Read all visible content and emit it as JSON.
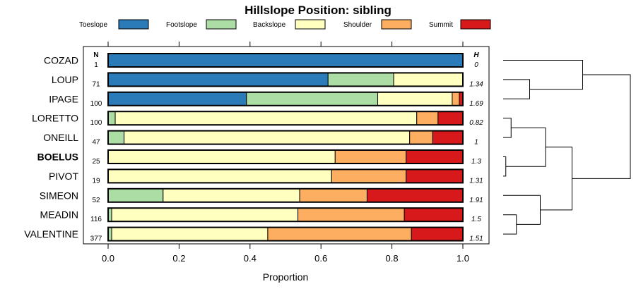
{
  "chart_data": {
    "type": "bar",
    "stacked": true,
    "orientation": "horizontal",
    "title": "Hillslope Position: sibling",
    "xlabel": "Proportion",
    "ylabel": "",
    "xlim": [
      0,
      1
    ],
    "x_ticks": [
      "0.0",
      "0.2",
      "0.4",
      "0.6",
      "0.8",
      "1.0"
    ],
    "legend_position": "top",
    "n_header": "N",
    "h_header": "H",
    "highlight": "BOELUS",
    "categories": [
      "COZAD",
      "LOUP",
      "IPAGE",
      "LORETTO",
      "ONEILL",
      "BOELUS",
      "PIVOT",
      "SIMEON",
      "MEADIN",
      "VALENTINE"
    ],
    "n": [
      "1",
      "71",
      "100",
      "100",
      "47",
      "25",
      "19",
      "52",
      "116",
      "377"
    ],
    "h": [
      "0",
      "1.34",
      "1.69",
      "0.82",
      "1",
      "1.3",
      "1.31",
      "1.91",
      "1.5",
      "1.51"
    ],
    "series": [
      {
        "name": "Toeslope",
        "color": "#2B7BB9",
        "values": [
          1.0,
          0.62,
          0.39,
          0.0,
          0.0,
          0.0,
          0.0,
          0.0,
          0.0,
          0.0
        ]
      },
      {
        "name": "Footslope",
        "color": "#ABDDA4",
        "values": [
          0.0,
          0.185,
          0.37,
          0.02,
          0.045,
          0.0,
          0.0,
          0.155,
          0.01,
          0.01
        ]
      },
      {
        "name": "Backslope",
        "color": "#FFFFBF",
        "values": [
          0.0,
          0.195,
          0.21,
          0.85,
          0.805,
          0.64,
          0.63,
          0.385,
          0.525,
          0.44
        ]
      },
      {
        "name": "Shoulder",
        "color": "#FDAE61",
        "values": [
          0.0,
          0.0,
          0.02,
          0.06,
          0.065,
          0.2,
          0.21,
          0.19,
          0.3,
          0.405
        ]
      },
      {
        "name": "Summit",
        "color": "#D7191C",
        "values": [
          0.0,
          0.0,
          0.01,
          0.07,
          0.085,
          0.16,
          0.16,
          0.27,
          0.165,
          0.145
        ]
      }
    ],
    "dendrogram": {
      "leaves": [
        "COZAD",
        "LOUP",
        "IPAGE",
        "LORETTO",
        "ONEILL",
        "BOELUS",
        "PIVOT",
        "SIMEON",
        "MEADIN",
        "VALENTINE"
      ],
      "merges": [
        {
          "a": "LOUP",
          "b": "IPAGE",
          "height": 0.1
        },
        {
          "a": "LORETTO",
          "b": "ONEILL",
          "height": 0.03
        },
        {
          "a": "BOELUS",
          "b": "PIVOT",
          "height": 0.01
        },
        {
          "a": "MEADIN",
          "b": "VALENTINE",
          "height": 0.05
        },
        {
          "a": "COZAD",
          "b": "LOUP+IPAGE",
          "height": 0.3
        },
        {
          "a": "LORETTO+ONEILL",
          "b": "BOELUS+PIVOT",
          "height": 0.16
        },
        {
          "a": "SIMEON",
          "b": "MEADIN+VALENTINE",
          "height": 0.14
        },
        {
          "a": "LORETTO+ONEILL+BOELUS+PIVOT",
          "b": "SIMEON+MEADIN+VALENTINE",
          "height": 0.26
        },
        {
          "a": "COZAD+LOUP+IPAGE",
          "b": "LORETTO+ONEILL+BOELUS+PIVOT+SIMEON+MEADIN+VALENTINE",
          "height": 0.48
        }
      ]
    }
  }
}
